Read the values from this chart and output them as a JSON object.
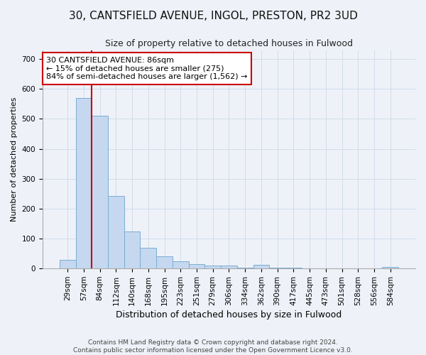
{
  "title1": "30, CANTSFIELD AVENUE, INGOL, PRESTON, PR2 3UD",
  "title2": "Size of property relative to detached houses in Fulwood",
  "xlabel": "Distribution of detached houses by size in Fulwood",
  "ylabel": "Number of detached properties",
  "categories": [
    "29sqm",
    "57sqm",
    "84sqm",
    "112sqm",
    "140sqm",
    "168sqm",
    "195sqm",
    "223sqm",
    "251sqm",
    "279sqm",
    "306sqm",
    "334sqm",
    "362sqm",
    "390sqm",
    "417sqm",
    "445sqm",
    "473sqm",
    "501sqm",
    "528sqm",
    "556sqm",
    "584sqm"
  ],
  "values": [
    28,
    570,
    510,
    242,
    125,
    70,
    42,
    25,
    15,
    10,
    11,
    3,
    12,
    3,
    3,
    0,
    0,
    0,
    0,
    0,
    6
  ],
  "bar_color": "#c5d8ef",
  "bar_edge_color": "#7aadd4",
  "grid_color": "#d0dcea",
  "property_line_label": "30 CANTSFIELD AVENUE: 86sqm",
  "annotation_line1": "← 15% of detached houses are smaller (275)",
  "annotation_line2": "84% of semi-detached houses are larger (1,562) →",
  "annotation_box_color": "#ffffff",
  "annotation_box_edge_color": "#cc0000",
  "vline_color": "#cc0000",
  "vline_x": 1.5,
  "ylim": [
    0,
    730
  ],
  "yticks": [
    0,
    100,
    200,
    300,
    400,
    500,
    600,
    700
  ],
  "footer1": "Contains HM Land Registry data © Crown copyright and database right 2024.",
  "footer2": "Contains public sector information licensed under the Open Government Licence v3.0.",
  "bg_color": "#eef2f8",
  "title1_fontsize": 11,
  "title2_fontsize": 9,
  "ylabel_fontsize": 8,
  "xlabel_fontsize": 9,
  "tick_fontsize": 7.5,
  "footer_fontsize": 6.5,
  "annot_fontsize": 8
}
